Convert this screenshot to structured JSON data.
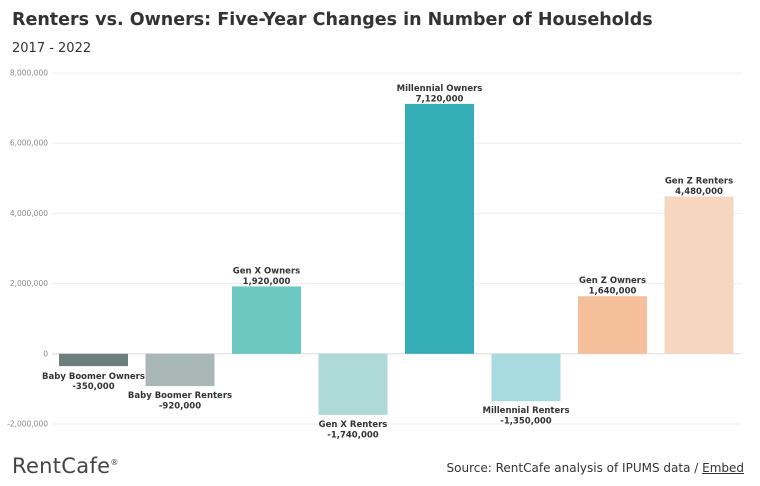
{
  "header": {
    "title": "Renters vs. Owners: Five-Year Changes in Number of Households",
    "subtitle": "2017 - 2022"
  },
  "footer": {
    "brand": "RentCafe",
    "brand_mark": "®",
    "source_text": "Source: RentCafe analysis of IPUMS data /",
    "embed_label": "Embed"
  },
  "chart_data": {
    "type": "bar",
    "title": "Renters vs. Owners: Five-Year Changes in Number of Households",
    "subtitle": "2017 - 2022",
    "xlabel": "",
    "ylabel": "",
    "ylim": [
      -2000000,
      8000000
    ],
    "yticks": [
      -2000000,
      0,
      2000000,
      4000000,
      6000000,
      8000000
    ],
    "ytick_labels": [
      "-2,000,000",
      "0",
      "2,000,000",
      "4,000,000",
      "6,000,000",
      "8,000,000"
    ],
    "grid": true,
    "legend": "none",
    "categories": [
      "Baby Boomer Owners",
      "Baby Boomer Renters",
      "Gen X Owners",
      "Gen X Renters",
      "Millennial Owners",
      "Millennial Renters",
      "Gen Z Owners",
      "Gen Z Renters"
    ],
    "values": [
      -350000,
      -920000,
      1920000,
      -1740000,
      7120000,
      -1350000,
      1640000,
      4480000
    ],
    "value_labels": [
      "-350,000",
      "-920,000",
      "1,920,000",
      "-1,740,000",
      "7,120,000",
      "-1,350,000",
      "1,640,000",
      "4,480,000"
    ],
    "colors": [
      "#6e7f7b",
      "#a9b8b6",
      "#6cc8c1",
      "#addad9",
      "#35adb7",
      "#a8dbdf",
      "#f5bf9b",
      "#f7d6c0"
    ]
  }
}
